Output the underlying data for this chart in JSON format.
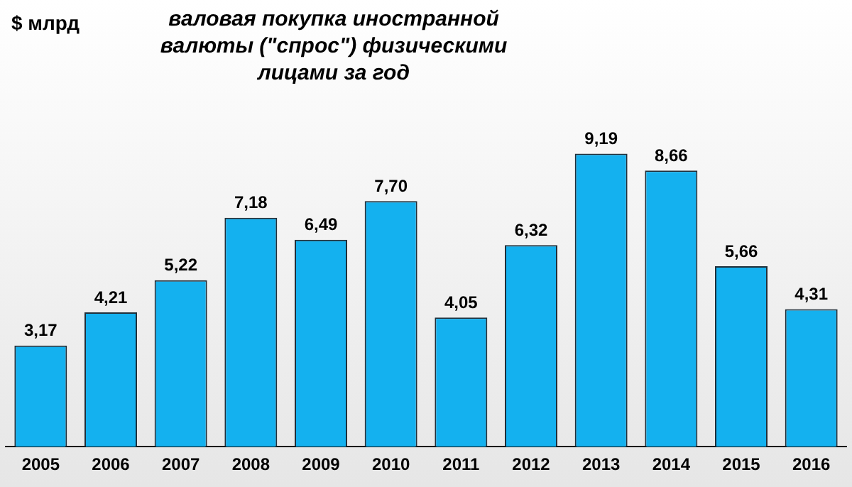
{
  "chart_data": {
    "type": "bar",
    "title": "валовая покупка иностранной валюты (\"спрос\") физическими лицами за год",
    "annotations": [
      "$ млрд"
    ],
    "categories": [
      "2005",
      "2006",
      "2007",
      "2008",
      "2009",
      "2010",
      "2011",
      "2012",
      "2013",
      "2014",
      "2015",
      "2016"
    ],
    "values": [
      3.17,
      4.21,
      5.22,
      7.18,
      6.49,
      7.7,
      4.05,
      6.32,
      9.19,
      8.66,
      5.66,
      4.31
    ],
    "value_labels": [
      "3,17",
      "4,21",
      "5,22",
      "7,18",
      "6,49",
      "7,70",
      "4,05",
      "6,32",
      "9,19",
      "8,66",
      "5,66",
      "4,31"
    ],
    "color": "#14b1ef",
    "grid": false,
    "legend": false
  }
}
